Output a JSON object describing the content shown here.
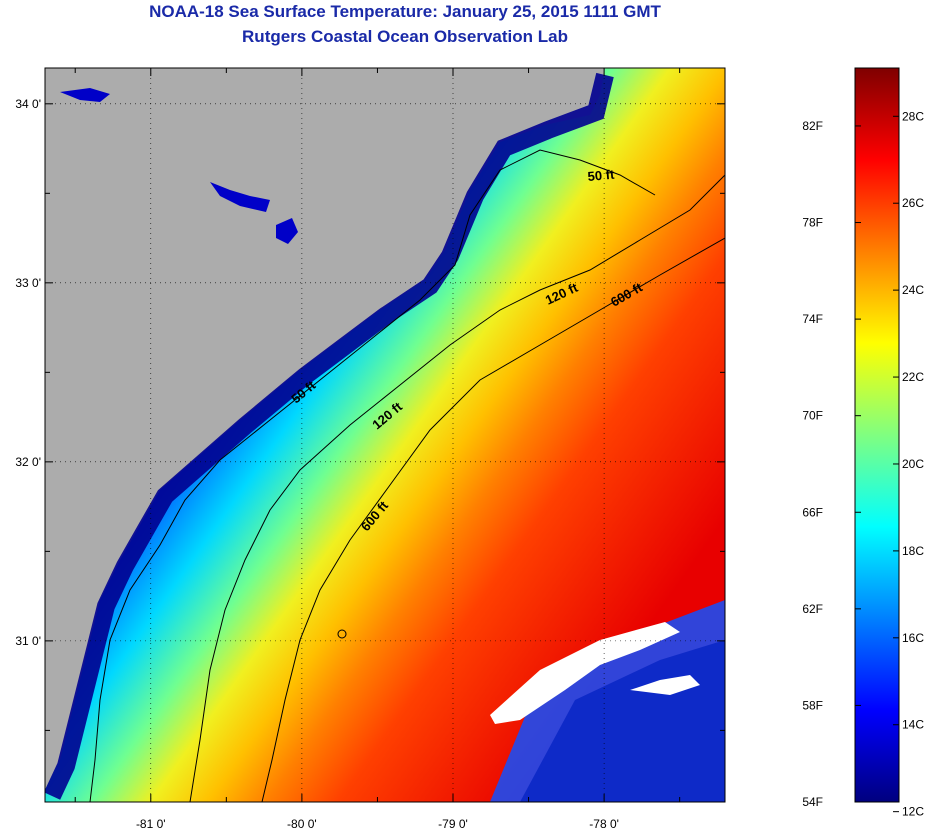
{
  "header": {
    "title": "NOAA-18 Sea Surface Temperature:  January 25, 2015 1111 GMT",
    "subtitle": "Rutgers Coastal Ocean Observation Lab"
  },
  "map": {
    "lon_range": [
      -81.7,
      -77.2
    ],
    "lat_range": [
      30.1,
      34.2
    ],
    "lon_ticks": [
      {
        "value": -81,
        "label": "-81 0'"
      },
      {
        "value": -80,
        "label": "-80 0'"
      },
      {
        "value": -79,
        "label": "-79 0'"
      },
      {
        "value": -78,
        "label": "-78 0'"
      }
    ],
    "lat_ticks": [
      {
        "value": 34,
        "label": "34 0'"
      },
      {
        "value": 33,
        "label": "33 0'"
      },
      {
        "value": 32,
        "label": "32 0'"
      },
      {
        "value": 31,
        "label": "31 0'"
      }
    ],
    "contour_labels": [
      "50 ft",
      "50 ft",
      "120 ft",
      "120 ft",
      "600 ft",
      "600 ft"
    ],
    "colors": {
      "land": "#acacac",
      "cloud": "#ffffff"
    }
  },
  "colorbar": {
    "fahrenheit_labels": [
      "82F",
      "78F",
      "74F",
      "70F",
      "66F",
      "62F",
      "58F",
      "54F"
    ],
    "celsius_labels": [
      "28C",
      "26C",
      "24C",
      "22C",
      "20C",
      "18C",
      "16C",
      "14C",
      "12C"
    ],
    "f_range": [
      54,
      84.4
    ],
    "colors": [
      "#00007f",
      "#0000ff",
      "#0080ff",
      "#00ffff",
      "#80ff80",
      "#ffff00",
      "#ff8000",
      "#ff0000",
      "#7f0000"
    ]
  }
}
